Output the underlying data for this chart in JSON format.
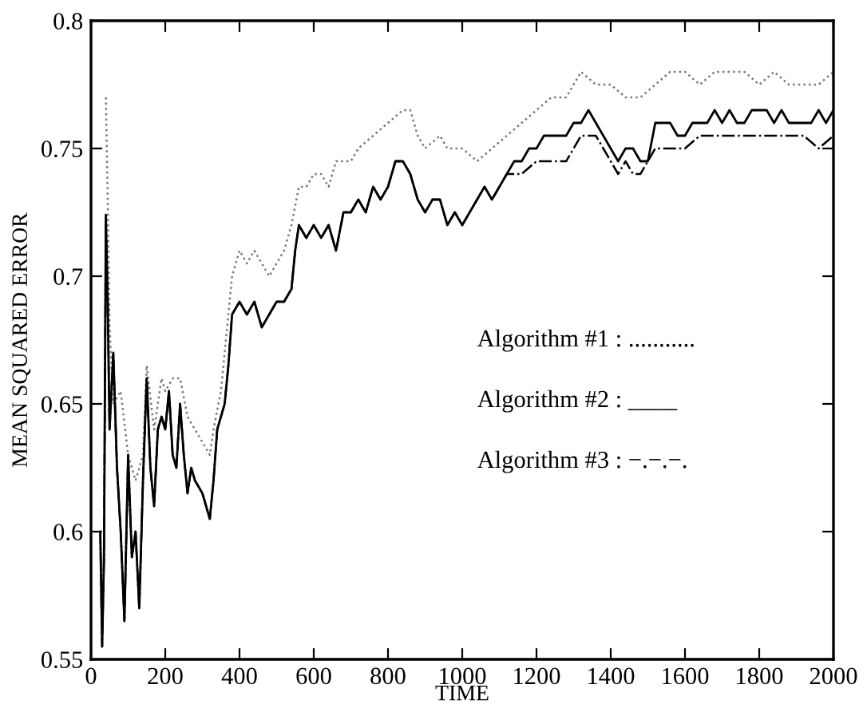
{
  "chart_data": {
    "type": "line",
    "xlabel": "TIME",
    "ylabel": "MEAN SQUARED ERROR",
    "xlim": [
      0,
      2000
    ],
    "xticks": [
      0,
      200,
      400,
      600,
      800,
      1000,
      1200,
      1400,
      1600,
      1800,
      2000
    ],
    "ylim": [
      0.55,
      0.8
    ],
    "yticks": [
      0.55,
      0.6,
      0.65,
      0.7,
      0.75,
      0.8
    ],
    "grid": false,
    "legend": false,
    "marker": "none",
    "annotations": [
      "Algorithm #1 : ...........",
      "Algorithm #2 : ____",
      "Algorithm #3 : −.−.−."
    ],
    "series": [
      {
        "color": "#777777",
        "line_style": "dotted",
        "x": [
          40,
          45,
          50,
          60,
          80,
          100,
          120,
          140,
          150,
          170,
          190,
          200,
          220,
          240,
          260,
          280,
          300,
          320,
          330,
          350,
          370,
          380,
          400,
          420,
          440,
          460,
          480,
          500,
          520,
          540,
          560,
          580,
          600,
          620,
          640,
          660,
          700,
          720,
          760,
          800,
          840,
          860,
          880,
          900,
          940,
          960,
          1000,
          1040,
          1080,
          1120,
          1160,
          1200,
          1240,
          1280,
          1300,
          1320,
          1360,
          1400,
          1440,
          1480,
          1520,
          1560,
          1600,
          1640,
          1680,
          1720,
          1760,
          1800,
          1840,
          1880,
          1920,
          1960,
          2000
        ],
        "values": [
          0.77,
          0.73,
          0.68,
          0.65,
          0.655,
          0.63,
          0.62,
          0.63,
          0.665,
          0.64,
          0.66,
          0.655,
          0.66,
          0.66,
          0.645,
          0.64,
          0.635,
          0.63,
          0.64,
          0.655,
          0.685,
          0.7,
          0.71,
          0.705,
          0.71,
          0.705,
          0.7,
          0.705,
          0.71,
          0.72,
          0.735,
          0.735,
          0.74,
          0.74,
          0.735,
          0.745,
          0.745,
          0.75,
          0.755,
          0.76,
          0.765,
          0.765,
          0.755,
          0.75,
          0.755,
          0.75,
          0.75,
          0.745,
          0.75,
          0.755,
          0.76,
          0.765,
          0.77,
          0.77,
          0.775,
          0.78,
          0.775,
          0.775,
          0.77,
          0.77,
          0.775,
          0.78,
          0.78,
          0.775,
          0.78,
          0.78,
          0.78,
          0.775,
          0.78,
          0.775,
          0.775,
          0.775,
          0.78
        ]
      },
      {
        "color": "#000000",
        "line_style": "solid",
        "x": [
          25,
          30,
          35,
          40,
          45,
          50,
          60,
          70,
          80,
          90,
          100,
          110,
          120,
          130,
          140,
          150,
          160,
          170,
          180,
          190,
          200,
          210,
          220,
          230,
          240,
          250,
          260,
          270,
          280,
          300,
          320,
          330,
          340,
          350,
          360,
          370,
          380,
          400,
          420,
          440,
          460,
          480,
          500,
          520,
          540,
          550,
          560,
          580,
          600,
          620,
          640,
          660,
          680,
          700,
          720,
          740,
          760,
          780,
          800,
          820,
          840,
          860,
          880,
          900,
          920,
          940,
          960,
          980,
          1000,
          1020,
          1040,
          1060,
          1080,
          1100,
          1120,
          1140,
          1160,
          1180,
          1200,
          1220,
          1240,
          1260,
          1280,
          1300,
          1320,
          1340,
          1360,
          1380,
          1400,
          1420,
          1440,
          1460,
          1480,
          1500,
          1520,
          1540,
          1560,
          1580,
          1600,
          1620,
          1640,
          1660,
          1680,
          1700,
          1720,
          1740,
          1760,
          1780,
          1800,
          1820,
          1840,
          1860,
          1880,
          1900,
          1920,
          1940,
          1960,
          1980,
          2000
        ],
        "values": [
          0.6,
          0.555,
          0.59,
          0.724,
          0.69,
          0.64,
          0.67,
          0.625,
          0.6,
          0.565,
          0.63,
          0.59,
          0.6,
          0.57,
          0.62,
          0.66,
          0.625,
          0.61,
          0.64,
          0.645,
          0.64,
          0.655,
          0.63,
          0.625,
          0.65,
          0.63,
          0.615,
          0.625,
          0.62,
          0.615,
          0.605,
          0.62,
          0.64,
          0.645,
          0.65,
          0.665,
          0.685,
          0.69,
          0.685,
          0.69,
          0.68,
          0.685,
          0.69,
          0.69,
          0.695,
          0.71,
          0.72,
          0.715,
          0.72,
          0.715,
          0.72,
          0.71,
          0.725,
          0.725,
          0.73,
          0.725,
          0.735,
          0.73,
          0.735,
          0.745,
          0.745,
          0.74,
          0.73,
          0.725,
          0.73,
          0.73,
          0.72,
          0.725,
          0.72,
          0.725,
          0.73,
          0.735,
          0.73,
          0.735,
          0.74,
          0.745,
          0.745,
          0.75,
          0.75,
          0.755,
          0.755,
          0.755,
          0.755,
          0.76,
          0.76,
          0.765,
          0.76,
          0.755,
          0.75,
          0.745,
          0.75,
          0.75,
          0.745,
          0.745,
          0.76,
          0.76,
          0.76,
          0.755,
          0.755,
          0.76,
          0.76,
          0.76,
          0.765,
          0.76,
          0.765,
          0.76,
          0.76,
          0.765,
          0.765,
          0.765,
          0.76,
          0.765,
          0.76,
          0.76,
          0.76,
          0.76,
          0.765,
          0.76,
          0.765
        ]
      },
      {
        "color": "#000000",
        "line_style": "dashed",
        "x": [
          25,
          30,
          35,
          40,
          45,
          50,
          60,
          70,
          80,
          90,
          100,
          110,
          120,
          130,
          140,
          150,
          160,
          170,
          180,
          190,
          200,
          210,
          220,
          230,
          240,
          250,
          260,
          270,
          280,
          300,
          320,
          330,
          340,
          350,
          360,
          370,
          380,
          400,
          420,
          440,
          460,
          480,
          500,
          520,
          540,
          550,
          560,
          580,
          600,
          620,
          640,
          660,
          680,
          700,
          720,
          740,
          760,
          780,
          800,
          820,
          840,
          860,
          880,
          900,
          920,
          940,
          960,
          980,
          1000,
          1020,
          1040,
          1060,
          1080,
          1100,
          1120,
          1140,
          1160,
          1200,
          1240,
          1280,
          1300,
          1320,
          1360,
          1380,
          1400,
          1420,
          1440,
          1460,
          1480,
          1500,
          1520,
          1560,
          1600,
          1640,
          1680,
          1720,
          1760,
          1800,
          1840,
          1880,
          1920,
          1960,
          2000
        ],
        "values": [
          0.6,
          0.555,
          0.59,
          0.72,
          0.69,
          0.64,
          0.67,
          0.625,
          0.6,
          0.565,
          0.63,
          0.59,
          0.6,
          0.57,
          0.62,
          0.66,
          0.625,
          0.61,
          0.64,
          0.645,
          0.64,
          0.655,
          0.63,
          0.625,
          0.65,
          0.63,
          0.615,
          0.625,
          0.62,
          0.615,
          0.605,
          0.62,
          0.64,
          0.645,
          0.65,
          0.665,
          0.685,
          0.69,
          0.685,
          0.69,
          0.68,
          0.685,
          0.69,
          0.69,
          0.695,
          0.71,
          0.72,
          0.715,
          0.72,
          0.715,
          0.72,
          0.71,
          0.725,
          0.725,
          0.73,
          0.725,
          0.735,
          0.73,
          0.735,
          0.745,
          0.745,
          0.74,
          0.73,
          0.725,
          0.73,
          0.73,
          0.72,
          0.725,
          0.72,
          0.725,
          0.73,
          0.735,
          0.73,
          0.735,
          0.74,
          0.74,
          0.74,
          0.745,
          0.745,
          0.745,
          0.75,
          0.755,
          0.755,
          0.75,
          0.745,
          0.74,
          0.745,
          0.74,
          0.74,
          0.745,
          0.75,
          0.75,
          0.75,
          0.755,
          0.755,
          0.755,
          0.755,
          0.755,
          0.755,
          0.755,
          0.755,
          0.75,
          0.755
        ]
      }
    ]
  }
}
